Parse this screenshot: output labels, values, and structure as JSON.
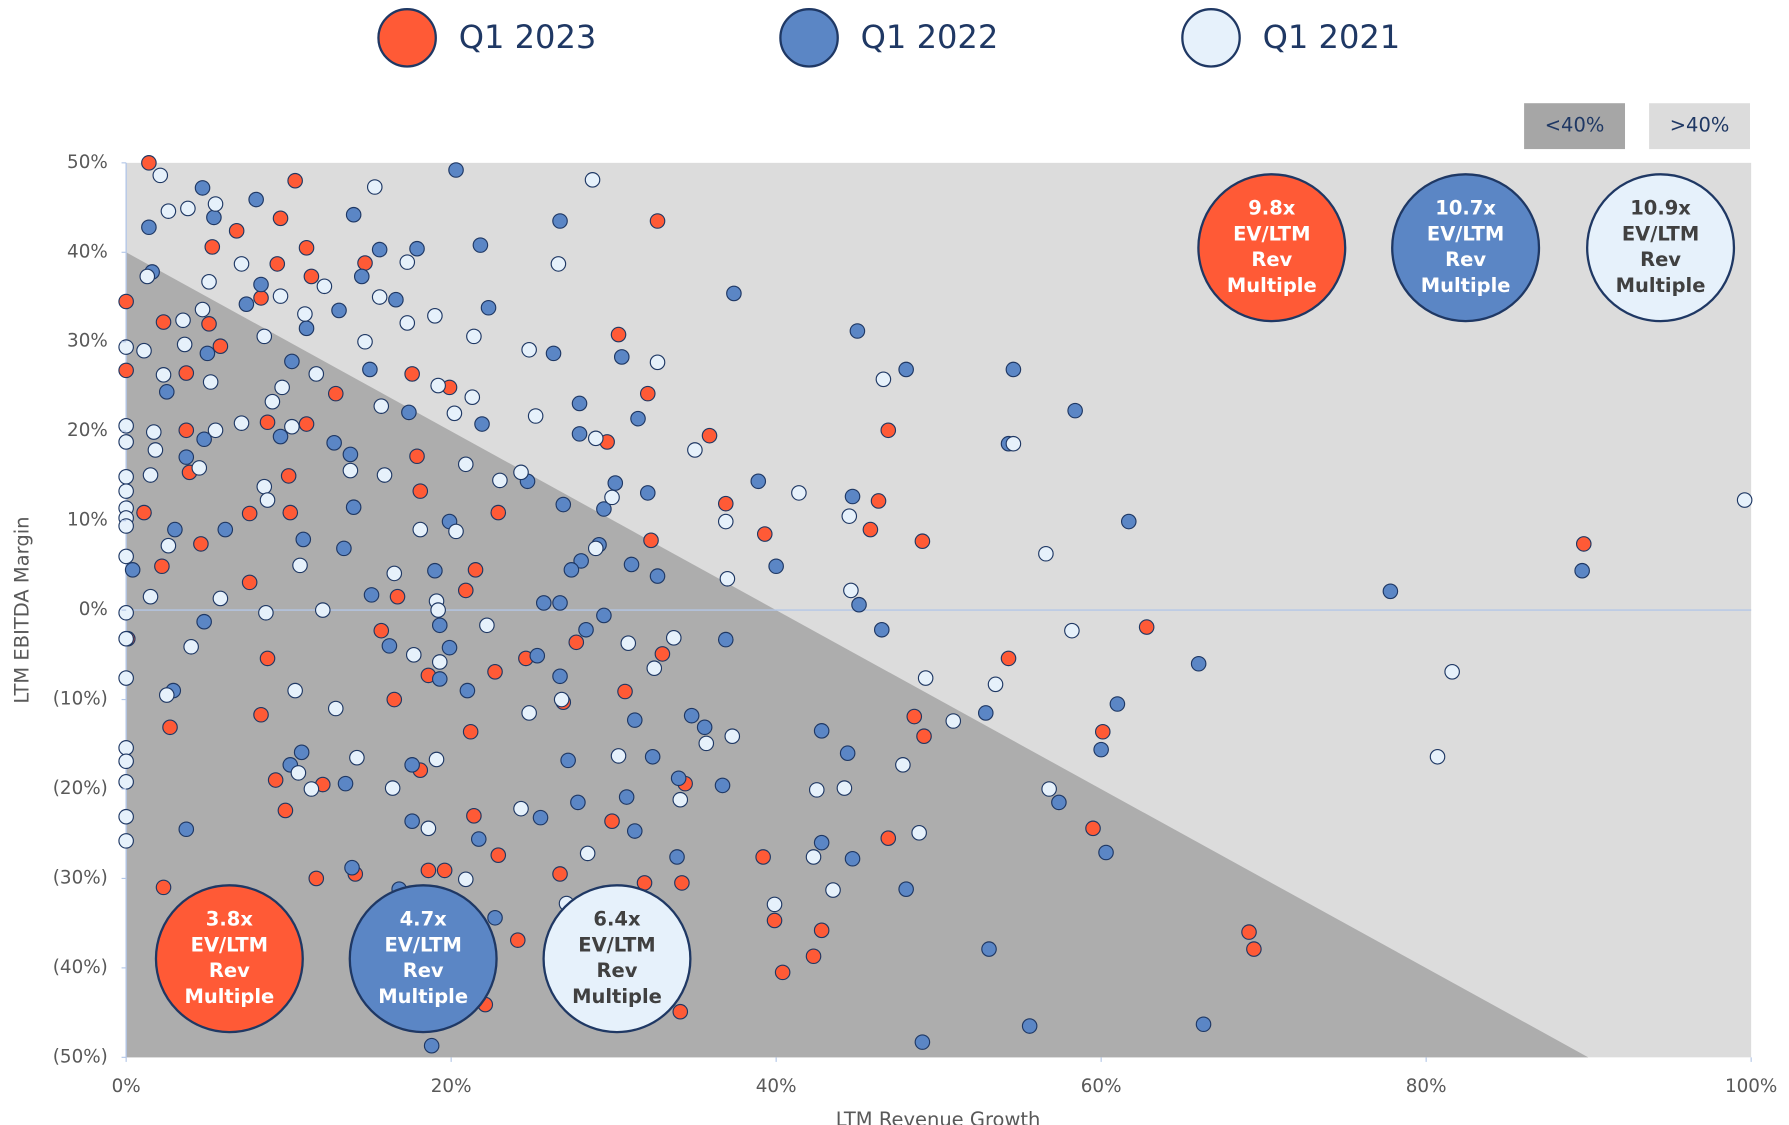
{
  "chart_data": {
    "type": "scatter",
    "x_label": "LTM Revenue Growth",
    "y_label": "LTM EBITDA Margin",
    "xlim": [
      0,
      100
    ],
    "ylim": [
      -50,
      50
    ],
    "xticks": [
      {
        "value": 0,
        "label": "0%"
      },
      {
        "value": 20,
        "label": "20%"
      },
      {
        "value": 40,
        "label": "40%"
      },
      {
        "value": 60,
        "label": "60%"
      },
      {
        "value": 80,
        "label": "80%"
      },
      {
        "value": 100,
        "label": "100%"
      }
    ],
    "yticks": [
      {
        "value": 50,
        "label": "50%"
      },
      {
        "value": 40,
        "label": "40%"
      },
      {
        "value": 30,
        "label": "30%"
      },
      {
        "value": 20,
        "label": "20%"
      },
      {
        "value": 10,
        "label": "10%"
      },
      {
        "value": 0,
        "label": "0%"
      },
      {
        "value": -10,
        "label": "(10%)"
      },
      {
        "value": -20,
        "label": "(20%)"
      },
      {
        "value": -30,
        "label": "(30%)"
      },
      {
        "value": -40,
        "label": "(40%)"
      },
      {
        "value": -50,
        "label": "(50%)"
      }
    ],
    "region_labels": [
      {
        "label": "<40%",
        "color": "#a6a6a6"
      },
      {
        "label": ">40%",
        "color": "#dcdcdc"
      }
    ],
    "annotations": [
      {
        "lines": [
          "3.8x",
          "EV/LTM",
          "Rev",
          "Multiple"
        ],
        "color": "#ff5a36",
        "text_color": "#ffffff"
      },
      {
        "lines": [
          "4.7x",
          "EV/LTM",
          "Rev",
          "Multiple"
        ],
        "color": "#5b86c5",
        "text_color": "#ffffff"
      },
      {
        "lines": [
          "6.4x",
          "EV/LTM",
          "Rev",
          "Multiple"
        ],
        "color": "#e6f1fb",
        "text_color": "#404040"
      },
      {
        "lines": [
          "9.8x",
          "EV/LTM",
          "Rev",
          "Multiple"
        ],
        "color": "#ff5a36",
        "text_color": "#ffffff"
      },
      {
        "lines": [
          "10.7x",
          "EV/LTM",
          "Rev",
          "Multiple"
        ],
        "color": "#5b86c5",
        "text_color": "#ffffff"
      },
      {
        "lines": [
          "10.9x",
          "EV/LTM",
          "Rev",
          "Multiple"
        ],
        "color": "#e6f1fb",
        "text_color": "#404040"
      }
    ],
    "series": [
      {
        "name": "Q1 2023",
        "color": "#ff5a36",
        "x": [
          1.4,
          0,
          10.4,
          9.5,
          6.8,
          32.7,
          11.1,
          5.3,
          9.3,
          14.7,
          0,
          2.3,
          5.1,
          5.8,
          3.7,
          8.3,
          11.4,
          17.6,
          30.3,
          12.9,
          32.1,
          19.9,
          35.9,
          29.6,
          46.9,
          3.7,
          8.7,
          11.1,
          17.9,
          3.9,
          10,
          18.1,
          1.1,
          7.6,
          10.1,
          22.9,
          36.9,
          46.3,
          39.3,
          45.8,
          49,
          32.3,
          89.7,
          4.6,
          7.6,
          21.5,
          20.9,
          16.7,
          2.2,
          15.7,
          0.1,
          8.7,
          27.7,
          33,
          24.6,
          22.7,
          18.6,
          26.9,
          30.7,
          16.5,
          2.7,
          8.3,
          21.2,
          54.3,
          62.8,
          48.5,
          60.1,
          49.1,
          34.4,
          9.2,
          12.1,
          18.1,
          9.8,
          21.4,
          29.9,
          59.5,
          46.9,
          22.9,
          39.2,
          26.7,
          31.9,
          34.2,
          18.6,
          19.6,
          14.1,
          11.7,
          2.3,
          39.9,
          42.8,
          24.1,
          42.3,
          69.1,
          69.4,
          40.4,
          22.1,
          34.1
        ],
        "values": [
          50,
          34.5,
          48,
          43.8,
          42.4,
          43.5,
          40.5,
          40.6,
          38.7,
          38.8,
          26.8,
          32.2,
          32,
          29.5,
          26.5,
          34.9,
          37.3,
          26.4,
          30.8,
          24.2,
          24.2,
          24.9,
          19.5,
          18.8,
          20.1,
          20.1,
          21,
          20.8,
          17.2,
          15.4,
          15,
          13.3,
          10.9,
          10.8,
          10.9,
          10.9,
          11.9,
          12.2,
          8.5,
          9,
          7.7,
          7.8,
          7.4,
          7.4,
          3.1,
          4.5,
          2.2,
          1.5,
          4.9,
          -2.3,
          -3.2,
          -5.4,
          -3.6,
          -4.9,
          -5.4,
          -6.9,
          -7.3,
          -10.3,
          -9.1,
          -10,
          -13.1,
          -11.7,
          -13.6,
          -5.4,
          -1.9,
          -11.9,
          -13.6,
          -14.1,
          -19.4,
          -19,
          -19.5,
          -17.9,
          -22.4,
          -23,
          -23.6,
          -24.4,
          -25.5,
          -27.4,
          -27.6,
          -29.5,
          -30.5,
          -30.5,
          -29.1,
          -29.1,
          -29.5,
          -30,
          -31,
          -34.7,
          -35.8,
          -36.9,
          -38.7,
          -36,
          -37.9,
          -40.5,
          -44.1,
          -44.9
        ]
      },
      {
        "name": "Q1 2022",
        "color": "#5b86c5",
        "x": [
          1.4,
          4.7,
          8.0,
          20.3,
          14.0,
          26.7,
          5.4,
          1.6,
          15.6,
          17.9,
          21.8,
          14.5,
          8.3,
          37.4,
          16.6,
          22.3,
          7.4,
          13.1,
          11.1,
          45.0,
          26.3,
          30.5,
          48.0,
          54.6,
          15.0,
          5.0,
          2.5,
          10.2,
          58.4,
          31.5,
          27.9,
          21.9,
          17.4,
          12.8,
          27.9,
          54.3,
          4.8,
          9.5,
          13.8,
          3.7,
          38.9,
          30.1,
          24.7,
          32.1,
          44.7,
          26.9,
          29.4,
          14.0,
          6.1,
          3.0,
          19.9,
          61.7,
          10.9,
          13.4,
          29.1,
          28.0,
          27.4,
          40.0,
          31.1,
          32.7,
          19.0,
          0.4,
          15.1,
          25.7,
          26.7,
          45.1,
          77.8,
          89.6,
          29.4,
          28.3,
          46.5,
          19.3,
          4.8,
          16.2,
          19.9,
          36.9,
          25.3,
          66.0,
          26.7,
          19.3,
          21.0,
          2.9,
          61.0,
          31.3,
          52.9,
          34.8,
          35.6,
          42.8,
          60.0,
          32.4,
          44.4,
          27.2,
          17.6,
          10.1,
          10.8,
          36.7,
          34.0,
          30.8,
          27.8,
          57.4,
          25.5,
          17.6,
          21.7,
          31.3,
          42.8,
          60.3,
          44.7,
          33.9,
          3.7,
          13.9,
          48.0,
          16.8,
          22.7,
          53.1,
          66.3,
          55.6,
          49.0,
          18.8,
          13.5
        ],
        "values": [
          42.8,
          47.2,
          45.9,
          49.2,
          44.2,
          43.5,
          43.9,
          37.8,
          40.3,
          40.4,
          40.8,
          37.3,
          36.4,
          35.4,
          34.7,
          33.8,
          34.2,
          33.5,
          31.5,
          31.2,
          28.7,
          28.3,
          26.9,
          26.9,
          26.9,
          28.7,
          24.4,
          27.8,
          22.3,
          21.4,
          23.1,
          20.8,
          22.1,
          18.7,
          19.7,
          18.6,
          19.1,
          19.4,
          17.4,
          17.1,
          14.4,
          14.2,
          14.4,
          13.1,
          12.7,
          11.8,
          11.3,
          11.5,
          9.0,
          9.0,
          9.9,
          9.9,
          7.9,
          6.9,
          7.3,
          5.5,
          4.5,
          4.9,
          5.1,
          3.8,
          4.4,
          4.5,
          1.7,
          0.8,
          0.8,
          0.6,
          2.1,
          4.4,
          -0.6,
          -2.2,
          -2.2,
          -1.7,
          -1.3,
          -4.0,
          -4.2,
          -3.3,
          -5.1,
          -6.0,
          -7.4,
          -7.7,
          -9.0,
          -9.0,
          -10.5,
          -12.3,
          -11.5,
          -11.8,
          -13.1,
          -13.5,
          -15.6,
          -16.4,
          -16.0,
          -16.8,
          -17.3,
          -17.3,
          -15.9,
          -19.6,
          -18.8,
          -20.9,
          -21.5,
          -21.5,
          -23.2,
          -23.6,
          -25.6,
          -24.7,
          -26.0,
          -27.1,
          -27.8,
          -27.6,
          -24.5,
          -28.8,
          -31.2,
          -31.2,
          -34.4,
          -37.9,
          -46.3,
          -46.5,
          -48.3,
          -48.7,
          -19.4
        ]
      },
      {
        "name": "Q1 2021",
        "color": "#e6f1fb",
        "x": [
          2.1,
          15.3,
          28.7,
          5.5,
          2.6,
          3.8,
          1.3,
          7.1,
          17.3,
          26.6,
          5.1,
          12.2,
          9.5,
          15.6,
          3.5,
          4.7,
          11.0,
          19.0,
          17.3,
          21.4,
          8.5,
          0,
          1.1,
          14.7,
          24.8,
          32.7,
          3.6,
          2.3,
          5.2,
          11.7,
          19.2,
          9.6,
          46.6,
          21.3,
          15.7,
          9.0,
          25.2,
          20.2,
          0,
          1.7,
          5.5,
          7.1,
          10.2,
          28.9,
          35.0,
          54.6,
          0,
          1.8,
          20.9,
          13.8,
          4.5,
          1.5,
          15.9,
          24.3,
          23.0,
          0,
          8.5,
          0,
          41.4,
          29.9,
          99.6,
          0,
          8.7,
          0,
          44.5,
          36.9,
          18.1,
          20.3,
          0,
          2.6,
          28.9,
          56.6,
          0,
          16.5,
          10.7,
          37.0,
          44.6,
          1.5,
          5.8,
          19.1,
          12.1,
          8.6,
          0,
          19.2,
          22.2,
          58.2,
          33.7,
          30.9,
          0,
          4.0,
          17.7,
          19.3,
          81.6,
          32.5,
          0,
          49.2,
          53.5,
          10.4,
          2.5,
          26.8,
          12.9,
          50.9,
          24.8,
          37.3,
          35.7,
          30.3,
          80.7,
          14.2,
          0,
          0,
          19.1,
          47.8,
          10.6,
          0,
          16.4,
          11.4,
          42.5,
          44.2,
          56.8,
          34.1,
          24.3,
          0,
          18.6,
          48.8,
          0,
          28.4,
          42.3,
          20.9,
          43.5,
          39.9,
          27.1
        ],
        "values": [
          48.6,
          47.3,
          48.1,
          45.4,
          44.6,
          44.9,
          37.3,
          38.7,
          38.9,
          38.7,
          36.7,
          36.2,
          35.1,
          35.0,
          32.4,
          33.6,
          33.1,
          32.9,
          32.1,
          30.6,
          30.6,
          29.4,
          29.0,
          30.0,
          29.1,
          27.7,
          29.7,
          26.3,
          25.5,
          26.4,
          25.1,
          24.9,
          25.8,
          23.8,
          22.8,
          23.3,
          21.7,
          22.0,
          20.6,
          19.9,
          20.1,
          20.9,
          20.5,
          19.2,
          17.9,
          18.6,
          18.8,
          17.9,
          16.3,
          15.6,
          15.9,
          15.1,
          15.1,
          15.4,
          14.5,
          14.9,
          13.8,
          13.3,
          13.1,
          12.6,
          12.3,
          11.4,
          12.3,
          10.3,
          10.5,
          9.9,
          9.0,
          8.8,
          9.4,
          7.2,
          6.9,
          6.3,
          6.0,
          4.1,
          5.0,
          3.5,
          2.2,
          1.5,
          1.3,
          1.0,
          0,
          -0.3,
          -0.3,
          0,
          -1.7,
          -2.3,
          -3.1,
          -3.7,
          -3.2,
          -4.1,
          -5.0,
          -5.8,
          -6.9,
          -6.5,
          -7.6,
          -7.6,
          -8.3,
          -9.0,
          -9.5,
          -10.0,
          -11.0,
          -12.4,
          -11.5,
          -14.1,
          -14.9,
          -16.3,
          -16.4,
          -16.5,
          -15.4,
          -16.9,
          -16.7,
          -17.3,
          -18.2,
          -19.2,
          -19.9,
          -20.0,
          -20.1,
          -19.9,
          -20.0,
          -21.2,
          -22.2,
          -23.1,
          -24.4,
          -24.9,
          -25.8,
          -27.2,
          -27.6,
          -30.1,
          -31.3,
          -32.9,
          -32.8
        ]
      }
    ]
  }
}
